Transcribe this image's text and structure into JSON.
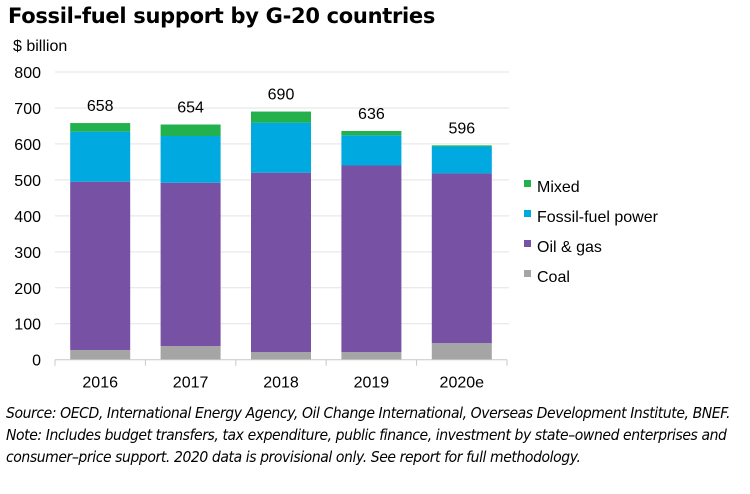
{
  "chart_data": {
    "type": "bar",
    "stacked": true,
    "title": "Fossil-fuel support by G-20 countries",
    "ylabel": "$ billion",
    "xlabel": "",
    "ylim": [
      0,
      800
    ],
    "yticks": [
      0,
      100,
      200,
      300,
      400,
      500,
      600,
      700,
      800
    ],
    "ytick_labels": [
      "0",
      "100",
      "200",
      "300",
      "400",
      "500",
      "600",
      "700",
      "800"
    ],
    "grid": true,
    "legend_position": "right",
    "categories": [
      "2016",
      "2017",
      "2018",
      "2019",
      "2020e"
    ],
    "series": [
      {
        "name": "Coal",
        "color": "#a5a5a5",
        "values": [
          27,
          38,
          21,
          21,
          46
        ]
      },
      {
        "name": "Oil & gas",
        "color": "#7752a4",
        "values": [
          468,
          454,
          499,
          519,
          472
        ]
      },
      {
        "name": "Fossil-fuel power",
        "color": "#00a9e0",
        "values": [
          139,
          130,
          139,
          84,
          75
        ]
      },
      {
        "name": "Mixed",
        "color": "#22b14c",
        "values": [
          24,
          32,
          31,
          12,
          3
        ]
      }
    ],
    "legend_order": [
      "Mixed",
      "Fossil-fuel power",
      "Oil & gas",
      "Coal"
    ],
    "totals": [
      "658",
      "654",
      "690",
      "636",
      "596"
    ]
  },
  "footnote": "Source: OECD, International Energy Agency, Oil Change International, Overseas Development Institute, BNEF. Note: Includes budget transfers, tax expenditure, public finance, investment by state–owned enterprises and consumer–price support. 2020 data is provisional only. See report for full methodology."
}
